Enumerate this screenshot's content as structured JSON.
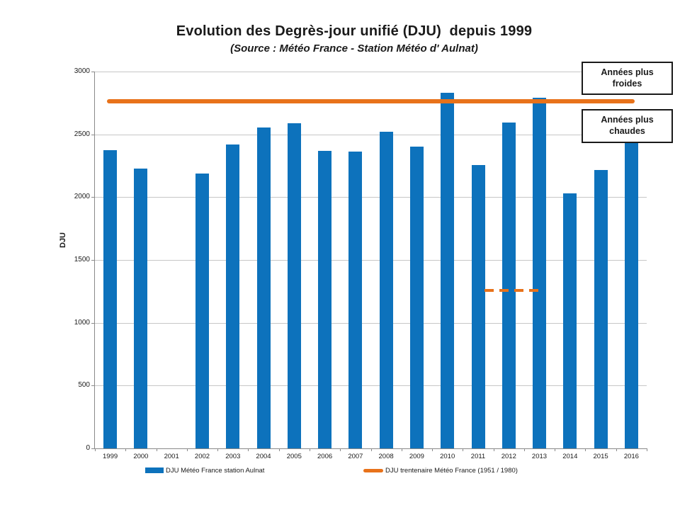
{
  "colors": {
    "bar_blue": "#0D72BC",
    "line_orange": "#E8721A",
    "gridline": "#C6C6C6",
    "axis": "#8A8A8A",
    "annotation_border": "#1A1A1A"
  },
  "annotation_boxes": {
    "cold": "Années plus froides",
    "warm": "Années plus chaudes"
  },
  "chart_data": {
    "type": "bar",
    "title": "Evolution des Degrès-jour unifié (DJU)  depuis 1999",
    "subtitle": "(Source : Météo France - Station Météo d' Aulnat)",
    "xlabel": "",
    "ylabel": "DJU",
    "ylim": [
      0,
      3000
    ],
    "ytick_step": 500,
    "grid": "horizontal",
    "legend_position": "bottom",
    "categories": [
      "1999",
      "2000",
      "2001",
      "2002",
      "2003",
      "2004",
      "2005",
      "2006",
      "2007",
      "2008",
      "2009",
      "2010",
      "2011",
      "2012",
      "2013",
      "2014",
      "2015",
      "2016"
    ],
    "series": [
      {
        "name": "DJU Météo France station Aulnat",
        "type": "bar",
        "color": "#0D72BC",
        "values": [
          2375,
          2225,
          0,
          2190,
          2420,
          2555,
          2590,
          2370,
          2365,
          2520,
          2400,
          2830,
          2255,
          2595,
          2790,
          2030,
          2215,
          2450
        ]
      },
      {
        "name": "DJU trentenaire Météo France (1951 / 1980)",
        "type": "reference-line",
        "color": "#E8721A",
        "value": 2765,
        "x_start_year": 1998.9,
        "x_end_year": 2016.1
      }
    ],
    "extra_annotation": {
      "type": "dashed-line-segment",
      "color": "#E8721A",
      "value": 1260,
      "x_start_year": 2011.2,
      "x_end_year": 2013.0
    }
  }
}
